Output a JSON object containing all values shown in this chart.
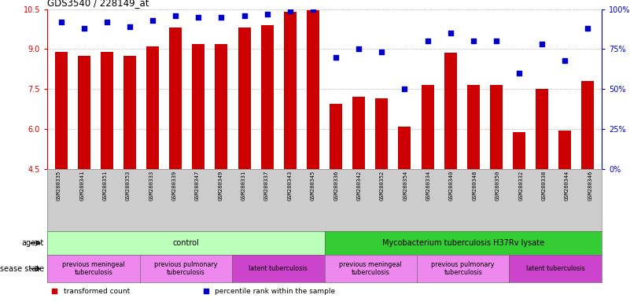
{
  "title": "GDS3540 / 228149_at",
  "samples": [
    "GSM280335",
    "GSM280341",
    "GSM280351",
    "GSM280353",
    "GSM280333",
    "GSM280339",
    "GSM280347",
    "GSM280349",
    "GSM280331",
    "GSM280337",
    "GSM280343",
    "GSM280345",
    "GSM280336",
    "GSM280342",
    "GSM280352",
    "GSM280354",
    "GSM280334",
    "GSM280340",
    "GSM280348",
    "GSM280350",
    "GSM280332",
    "GSM280338",
    "GSM280344",
    "GSM280346"
  ],
  "transformed_count": [
    8.9,
    8.75,
    8.9,
    8.75,
    9.1,
    9.8,
    9.2,
    9.2,
    9.8,
    9.9,
    10.4,
    10.45,
    6.95,
    7.2,
    7.15,
    6.1,
    7.65,
    8.85,
    7.65,
    7.65,
    5.9,
    7.5,
    5.95,
    7.8
  ],
  "percentile_rank": [
    92,
    88,
    92,
    89,
    93,
    96,
    95,
    95,
    96,
    97,
    99,
    100,
    70,
    75,
    73,
    50,
    80,
    85,
    80,
    80,
    60,
    78,
    68,
    88
  ],
  "ylim_left": [
    4.5,
    10.5
  ],
  "ylim_right": [
    0,
    100
  ],
  "yticks_left": [
    4.5,
    6.0,
    7.5,
    9.0,
    10.5
  ],
  "yticks_right": [
    0,
    25,
    50,
    75,
    100
  ],
  "bar_color": "#cc0000",
  "dot_color": "#0000cc",
  "background_color": "#ffffff",
  "grid_color": "#888888",
  "tick_bg_color": "#cccccc",
  "agent_groups": [
    {
      "label": "control",
      "start": 0,
      "end": 11,
      "color": "#bbffbb"
    },
    {
      "label": "Mycobacterium tuberculosis H37Rv lysate",
      "start": 12,
      "end": 23,
      "color": "#33cc33"
    }
  ],
  "disease_groups": [
    {
      "label": "previous meningeal\ntuberculosis",
      "start": 0,
      "end": 3,
      "color": "#ee88ee"
    },
    {
      "label": "previous pulmonary\ntuberculosis",
      "start": 4,
      "end": 7,
      "color": "#ee88ee"
    },
    {
      "label": "latent tuberculosis",
      "start": 8,
      "end": 11,
      "color": "#cc44cc"
    },
    {
      "label": "previous meningeal\ntuberculosis",
      "start": 12,
      "end": 15,
      "color": "#ee88ee"
    },
    {
      "label": "previous pulmonary\ntuberculosis",
      "start": 16,
      "end": 19,
      "color": "#ee88ee"
    },
    {
      "label": "latent tuberculosis",
      "start": 20,
      "end": 23,
      "color": "#cc44cc"
    }
  ],
  "legend_items": [
    {
      "label": "transformed count",
      "color": "#cc0000",
      "marker": "s"
    },
    {
      "label": "percentile rank within the sample",
      "color": "#0000cc",
      "marker": "s"
    }
  ]
}
